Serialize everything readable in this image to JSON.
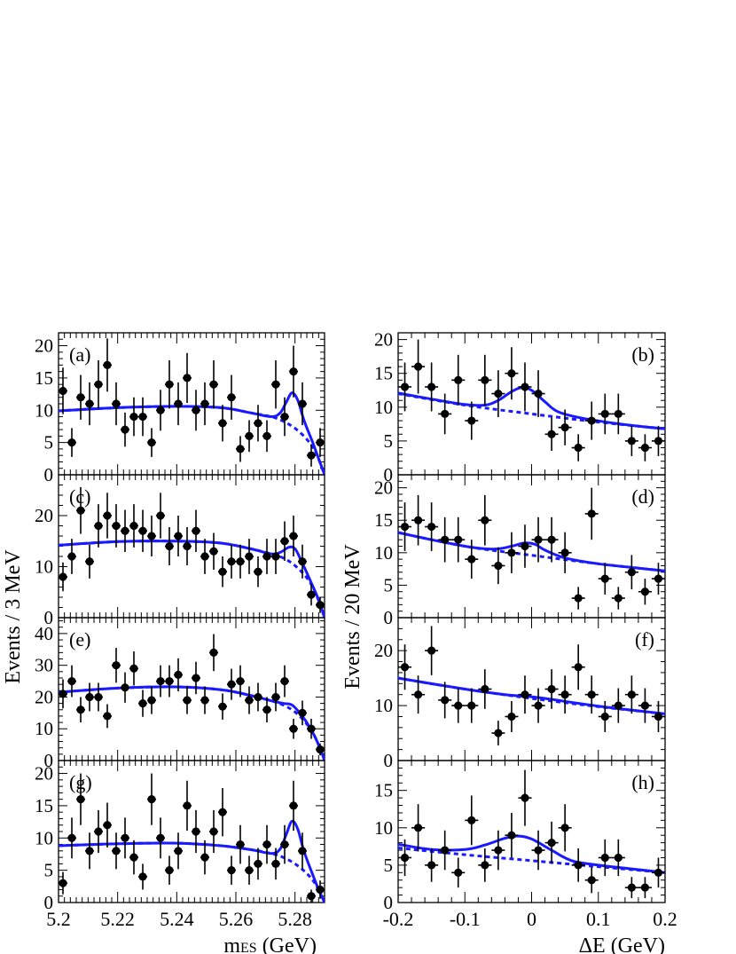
{
  "figure": {
    "left_ylabel": "Events / 3 MeV",
    "right_ylabel": "Events / 20 MeV",
    "left_xlabel_main": "m",
    "left_xlabel_sub": "ES",
    "left_xlabel_unit": " (GeV)",
    "right_xlabel": "ΔE (GeV)"
  },
  "colors": {
    "fit": "#1a1aff",
    "points": "#000000"
  },
  "chart_data": [
    {
      "id": "a",
      "label": "(a)",
      "type": "scatter",
      "axis": "mes",
      "xlim": [
        5.2,
        5.29
      ],
      "ylim": [
        0,
        22
      ],
      "yticks": [
        0,
        5,
        10,
        15,
        20
      ],
      "x": [
        5.2015,
        5.2045,
        5.2075,
        5.2105,
        5.2135,
        5.2165,
        5.2195,
        5.2225,
        5.2255,
        5.2285,
        5.2315,
        5.2345,
        5.2375,
        5.2405,
        5.2435,
        5.2465,
        5.2495,
        5.2525,
        5.2555,
        5.2585,
        5.2615,
        5.2645,
        5.2675,
        5.2705,
        5.2735,
        5.2765,
        5.2795,
        5.2825,
        5.2855,
        5.2885
      ],
      "y": [
        13,
        5,
        12,
        11,
        14,
        17,
        11,
        7,
        9,
        9,
        5,
        10,
        14,
        11,
        15,
        10,
        11,
        14,
        8,
        12,
        4,
        6,
        8,
        6,
        14,
        9,
        16,
        11,
        3,
        5
      ],
      "fit_total": [
        [
          5.2,
          9.9
        ],
        [
          5.22,
          10.4
        ],
        [
          5.24,
          10.6
        ],
        [
          5.255,
          10.4
        ],
        [
          5.265,
          9.6
        ],
        [
          5.272,
          9.0
        ],
        [
          5.275,
          9.6
        ],
        [
          5.277,
          11.2
        ],
        [
          5.279,
          12.7
        ],
        [
          5.281,
          11.5
        ],
        [
          5.283,
          8.5
        ],
        [
          5.286,
          5.0
        ],
        [
          5.288,
          2.5
        ],
        [
          5.29,
          0
        ]
      ],
      "fit_bkg": [
        [
          5.2,
          9.9
        ],
        [
          5.22,
          10.4
        ],
        [
          5.24,
          10.6
        ],
        [
          5.255,
          10.4
        ],
        [
          5.265,
          9.6
        ],
        [
          5.272,
          9.0
        ],
        [
          5.276,
          8.3
        ],
        [
          5.28,
          7.2
        ],
        [
          5.284,
          5.5
        ],
        [
          5.287,
          3.5
        ],
        [
          5.29,
          0
        ]
      ]
    },
    {
      "id": "b",
      "label": "(b)",
      "type": "scatter",
      "axis": "de",
      "xlim": [
        -0.2,
        0.2
      ],
      "ylim": [
        0,
        21
      ],
      "yticks": [
        0,
        5,
        10,
        15,
        20
      ],
      "x": [
        -0.19,
        -0.17,
        -0.15,
        -0.13,
        -0.11,
        -0.09,
        -0.07,
        -0.05,
        -0.03,
        -0.01,
        0.01,
        0.03,
        0.05,
        0.07,
        0.09,
        0.11,
        0.13,
        0.15,
        0.17,
        0.19
      ],
      "y": [
        13,
        16,
        13,
        9,
        14,
        8,
        14,
        12,
        15,
        13,
        12,
        6,
        7,
        4,
        8,
        9,
        9,
        5,
        4,
        5
      ],
      "fit_total": [
        [
          -0.2,
          12.1
        ],
        [
          -0.15,
          11.2
        ],
        [
          -0.1,
          10.4
        ],
        [
          -0.07,
          10.3
        ],
        [
          -0.05,
          11.0
        ],
        [
          -0.03,
          12.3
        ],
        [
          -0.015,
          12.9
        ],
        [
          0.0,
          12.5
        ],
        [
          0.02,
          10.8
        ],
        [
          0.04,
          9.3
        ],
        [
          0.08,
          8.3
        ],
        [
          0.15,
          7.3
        ],
        [
          0.2,
          6.8
        ]
      ],
      "fit_bkg": [
        [
          -0.2,
          12.0
        ],
        [
          -0.1,
          10.3
        ],
        [
          0.0,
          9.0
        ],
        [
          0.1,
          7.8
        ],
        [
          0.2,
          6.8
        ]
      ]
    },
    {
      "id": "c",
      "label": "(c)",
      "type": "scatter",
      "axis": "mes",
      "xlim": [
        5.2,
        5.29
      ],
      "ylim": [
        0,
        28
      ],
      "yticks": [
        0,
        10,
        20
      ],
      "x": [
        5.2015,
        5.2045,
        5.2075,
        5.2105,
        5.2135,
        5.2165,
        5.2195,
        5.2225,
        5.2255,
        5.2285,
        5.2315,
        5.2345,
        5.2375,
        5.2405,
        5.2435,
        5.2465,
        5.2495,
        5.2525,
        5.2555,
        5.2585,
        5.2615,
        5.2645,
        5.2675,
        5.2705,
        5.2735,
        5.2765,
        5.2795,
        5.2825,
        5.2855,
        5.2885
      ],
      "y": [
        8,
        12,
        21,
        11,
        18,
        20,
        18,
        17,
        18,
        17,
        16,
        20,
        14,
        16,
        14,
        17,
        12,
        13,
        9,
        11,
        11,
        12,
        9,
        12,
        12,
        15,
        16,
        11,
        4.5,
        2.5
      ],
      "fit_total": [
        [
          5.2,
          14.2
        ],
        [
          5.22,
          14.9
        ],
        [
          5.24,
          15.0
        ],
        [
          5.255,
          14.6
        ],
        [
          5.265,
          13.5
        ],
        [
          5.272,
          12.5
        ],
        [
          5.275,
          12.8
        ],
        [
          5.278,
          13.8
        ],
        [
          5.28,
          13.5
        ],
        [
          5.282,
          11.3
        ],
        [
          5.285,
          7.5
        ],
        [
          5.288,
          3.5
        ],
        [
          5.29,
          0
        ]
      ],
      "fit_bkg": [
        [
          5.2,
          14.2
        ],
        [
          5.22,
          14.9
        ],
        [
          5.24,
          15.0
        ],
        [
          5.255,
          14.6
        ],
        [
          5.265,
          13.5
        ],
        [
          5.272,
          12.5
        ],
        [
          5.276,
          11.7
        ],
        [
          5.28,
          10.2
        ],
        [
          5.284,
          7.8
        ],
        [
          5.287,
          4.8
        ],
        [
          5.29,
          0
        ]
      ]
    },
    {
      "id": "d",
      "label": "(d)",
      "type": "scatter",
      "axis": "de",
      "xlim": [
        -0.2,
        0.2
      ],
      "ylim": [
        0,
        22
      ],
      "yticks": [
        0,
        5,
        10,
        15,
        20
      ],
      "x": [
        -0.19,
        -0.17,
        -0.15,
        -0.13,
        -0.11,
        -0.09,
        -0.07,
        -0.05,
        -0.03,
        -0.01,
        0.01,
        0.03,
        0.05,
        0.07,
        0.09,
        0.11,
        0.13,
        0.15,
        0.17,
        0.19
      ],
      "y": [
        14,
        15,
        14,
        12,
        12,
        9,
        15,
        8,
        10,
        11,
        12,
        12,
        10,
        3,
        16,
        6,
        3,
        7,
        4,
        6
      ],
      "fit_total": [
        [
          -0.2,
          13.1
        ],
        [
          -0.15,
          12.0
        ],
        [
          -0.1,
          11.0
        ],
        [
          -0.07,
          10.6
        ],
        [
          -0.05,
          10.6
        ],
        [
          -0.03,
          11.0
        ],
        [
          -0.01,
          11.5
        ],
        [
          0.005,
          11.3
        ],
        [
          0.02,
          10.4
        ],
        [
          0.05,
          9.2
        ],
        [
          0.1,
          8.3
        ],
        [
          0.2,
          7.2
        ]
      ],
      "fit_bkg": [
        [
          -0.2,
          13.1
        ],
        [
          -0.1,
          11.0
        ],
        [
          0.0,
          9.6
        ],
        [
          0.1,
          8.3
        ],
        [
          0.2,
          7.2
        ]
      ]
    },
    {
      "id": "e",
      "label": "(e)",
      "type": "scatter",
      "axis": "mes",
      "xlim": [
        5.2,
        5.29
      ],
      "ylim": [
        0,
        45
      ],
      "yticks": [
        0,
        10,
        20,
        30,
        40
      ],
      "x": [
        5.2015,
        5.2045,
        5.2075,
        5.2105,
        5.2135,
        5.2165,
        5.2195,
        5.2225,
        5.2255,
        5.2285,
        5.2315,
        5.2345,
        5.2375,
        5.2405,
        5.2435,
        5.2465,
        5.2495,
        5.2525,
        5.2555,
        5.2585,
        5.2615,
        5.2645,
        5.2675,
        5.2705,
        5.2735,
        5.2765,
        5.2795,
        5.2825,
        5.2855,
        5.2885
      ],
      "y": [
        21,
        25,
        16,
        20,
        20,
        14,
        30,
        23,
        29,
        18,
        19,
        25,
        25,
        27,
        19,
        26,
        19,
        34,
        17,
        24,
        25,
        19,
        20,
        16,
        20,
        25,
        10,
        15,
        10,
        3.5
      ],
      "fit_total": [
        [
          5.2,
          21.5
        ],
        [
          5.22,
          22.8
        ],
        [
          5.24,
          23.2
        ],
        [
          5.255,
          22.3
        ],
        [
          5.265,
          20.5
        ],
        [
          5.272,
          18.8
        ],
        [
          5.276,
          18.0
        ],
        [
          5.279,
          17.5
        ],
        [
          5.282,
          14.5
        ],
        [
          5.285,
          10.5
        ],
        [
          5.288,
          5.0
        ],
        [
          5.29,
          0
        ]
      ],
      "fit_bkg": [
        [
          5.2,
          21.5
        ],
        [
          5.22,
          22.8
        ],
        [
          5.24,
          23.2
        ],
        [
          5.255,
          22.3
        ],
        [
          5.265,
          20.5
        ],
        [
          5.272,
          18.8
        ],
        [
          5.276,
          17.5
        ],
        [
          5.28,
          15.3
        ],
        [
          5.284,
          11.5
        ],
        [
          5.287,
          7.0
        ],
        [
          5.29,
          0
        ]
      ]
    },
    {
      "id": "f",
      "label": "(f)",
      "type": "scatter",
      "axis": "de",
      "xlim": [
        -0.2,
        0.2
      ],
      "ylim": [
        0,
        26
      ],
      "yticks": [
        0,
        10,
        20
      ],
      "x": [
        -0.19,
        -0.17,
        -0.15,
        -0.13,
        -0.11,
        -0.09,
        -0.07,
        -0.05,
        -0.03,
        -0.01,
        0.01,
        0.03,
        0.05,
        0.07,
        0.09,
        0.11,
        0.13,
        0.15,
        0.17,
        0.19
      ],
      "y": [
        17,
        12,
        20,
        11,
        10,
        10,
        13,
        5,
        8,
        12,
        10,
        13,
        12,
        17,
        12,
        8,
        10,
        12,
        10,
        8
      ],
      "fit_total": [
        [
          -0.2,
          15.0
        ],
        [
          -0.1,
          13.0
        ],
        [
          -0.04,
          12.0
        ],
        [
          -0.01,
          11.7
        ],
        [
          0.02,
          11.3
        ],
        [
          0.1,
          9.9
        ],
        [
          0.2,
          8.5
        ]
      ],
      "fit_bkg": [
        [
          -0.2,
          15.0
        ],
        [
          -0.1,
          13.0
        ],
        [
          0.0,
          11.3
        ],
        [
          0.1,
          9.8
        ],
        [
          0.2,
          8.5
        ]
      ]
    },
    {
      "id": "g",
      "label": "(g)",
      "type": "scatter",
      "axis": "mes",
      "xlim": [
        5.2,
        5.29
      ],
      "ylim": [
        0,
        22
      ],
      "yticks": [
        0,
        5,
        10,
        15,
        20
      ],
      "x": [
        5.2015,
        5.2045,
        5.2075,
        5.2105,
        5.2135,
        5.2165,
        5.2195,
        5.2225,
        5.2255,
        5.2285,
        5.2315,
        5.2345,
        5.2375,
        5.2405,
        5.2435,
        5.2465,
        5.2495,
        5.2525,
        5.2555,
        5.2585,
        5.2615,
        5.2645,
        5.2675,
        5.2705,
        5.2735,
        5.2765,
        5.2795,
        5.2825,
        5.2855,
        5.2885
      ],
      "y": [
        3,
        10,
        16,
        8,
        11,
        12,
        8,
        10,
        7,
        4,
        16,
        10,
        5,
        8,
        15,
        11,
        7,
        11,
        14,
        5,
        9,
        5,
        6,
        9,
        6,
        9,
        15,
        8,
        1,
        2
      ],
      "fit_total": [
        [
          5.2,
          8.8
        ],
        [
          5.22,
          9.1
        ],
        [
          5.24,
          9.2
        ],
        [
          5.255,
          8.8
        ],
        [
          5.265,
          8.2
        ],
        [
          5.272,
          7.6
        ],
        [
          5.275,
          8.3
        ],
        [
          5.277,
          10.5
        ],
        [
          5.279,
          12.6
        ],
        [
          5.281,
          11.3
        ],
        [
          5.283,
          8.0
        ],
        [
          5.286,
          4.3
        ],
        [
          5.288,
          2.0
        ],
        [
          5.29,
          0
        ]
      ],
      "fit_bkg": [
        [
          5.2,
          8.8
        ],
        [
          5.22,
          9.1
        ],
        [
          5.24,
          9.2
        ],
        [
          5.255,
          8.8
        ],
        [
          5.265,
          8.2
        ],
        [
          5.272,
          7.6
        ],
        [
          5.276,
          7.0
        ],
        [
          5.28,
          6.0
        ],
        [
          5.284,
          4.5
        ],
        [
          5.287,
          2.8
        ],
        [
          5.29,
          0
        ]
      ]
    },
    {
      "id": "h",
      "label": "(h)",
      "type": "scatter",
      "axis": "de",
      "xlim": [
        -0.2,
        0.2
      ],
      "ylim": [
        0,
        19
      ],
      "yticks": [
        0,
        5,
        10,
        15
      ],
      "x": [
        -0.19,
        -0.17,
        -0.15,
        -0.13,
        -0.11,
        -0.09,
        -0.07,
        -0.05,
        -0.03,
        -0.01,
        0.01,
        0.03,
        0.05,
        0.07,
        0.09,
        0.11,
        0.13,
        0.15,
        0.17,
        0.19
      ],
      "y": [
        6,
        10,
        5,
        7,
        4,
        11,
        5,
        7,
        9,
        14,
        7,
        8,
        10,
        5,
        3,
        6,
        6,
        2,
        2,
        4
      ],
      "fit_total": [
        [
          -0.2,
          7.8
        ],
        [
          -0.15,
          7.1
        ],
        [
          -0.1,
          7.1
        ],
        [
          -0.07,
          7.7
        ],
        [
          -0.04,
          8.6
        ],
        [
          -0.02,
          8.9
        ],
        [
          0.0,
          8.5
        ],
        [
          0.03,
          7.0
        ],
        [
          0.06,
          5.6
        ],
        [
          0.1,
          5.0
        ],
        [
          0.15,
          4.5
        ],
        [
          0.2,
          4.0
        ]
      ],
      "fit_bkg": [
        [
          -0.2,
          7.3
        ],
        [
          -0.1,
          6.4
        ],
        [
          0.0,
          5.6
        ],
        [
          0.1,
          4.8
        ],
        [
          0.2,
          4.0
        ]
      ]
    }
  ]
}
